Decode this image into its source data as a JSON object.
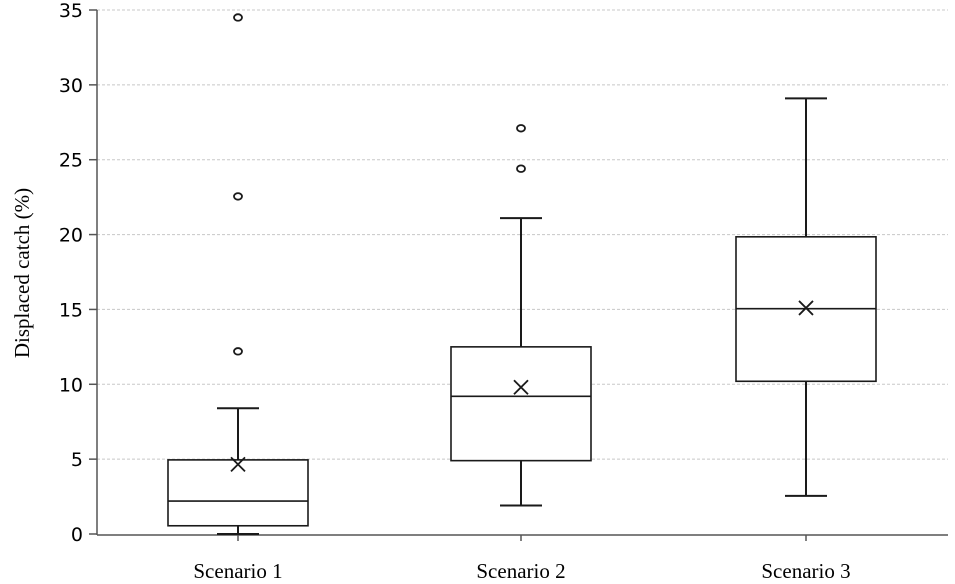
{
  "chart_data": {
    "type": "boxplot",
    "title": "",
    "xlabel": "",
    "ylabel": "Displaced catch (%)",
    "ylim": [
      0,
      35
    ],
    "yticks": [
      0,
      5,
      10,
      15,
      20,
      25,
      30,
      35
    ],
    "grid": "horizontal dashed",
    "legend": null,
    "categories": [
      "Scenario 1",
      "Scenario 2",
      "Scenario 3"
    ],
    "series": [
      {
        "name": "Scenario 1",
        "whisker_low": 0.0,
        "q1": 0.55,
        "median": 2.2,
        "q3": 4.95,
        "whisker_high": 8.4,
        "mean": 4.65,
        "outliers": [
          12.2,
          22.55,
          34.5
        ]
      },
      {
        "name": "Scenario 2",
        "whisker_low": 1.9,
        "q1": 4.9,
        "median": 9.2,
        "q3": 12.5,
        "whisker_high": 21.1,
        "mean": 9.8,
        "outliers": [
          24.4,
          27.1
        ]
      },
      {
        "name": "Scenario 3",
        "whisker_low": 2.55,
        "q1": 10.2,
        "median": 15.05,
        "q3": 19.85,
        "whisker_high": 29.1,
        "mean": 15.1,
        "outliers": []
      }
    ]
  },
  "colors": {
    "box": "#1a1a1a",
    "grid": "#c8c8c8",
    "axis": "#555555"
  }
}
